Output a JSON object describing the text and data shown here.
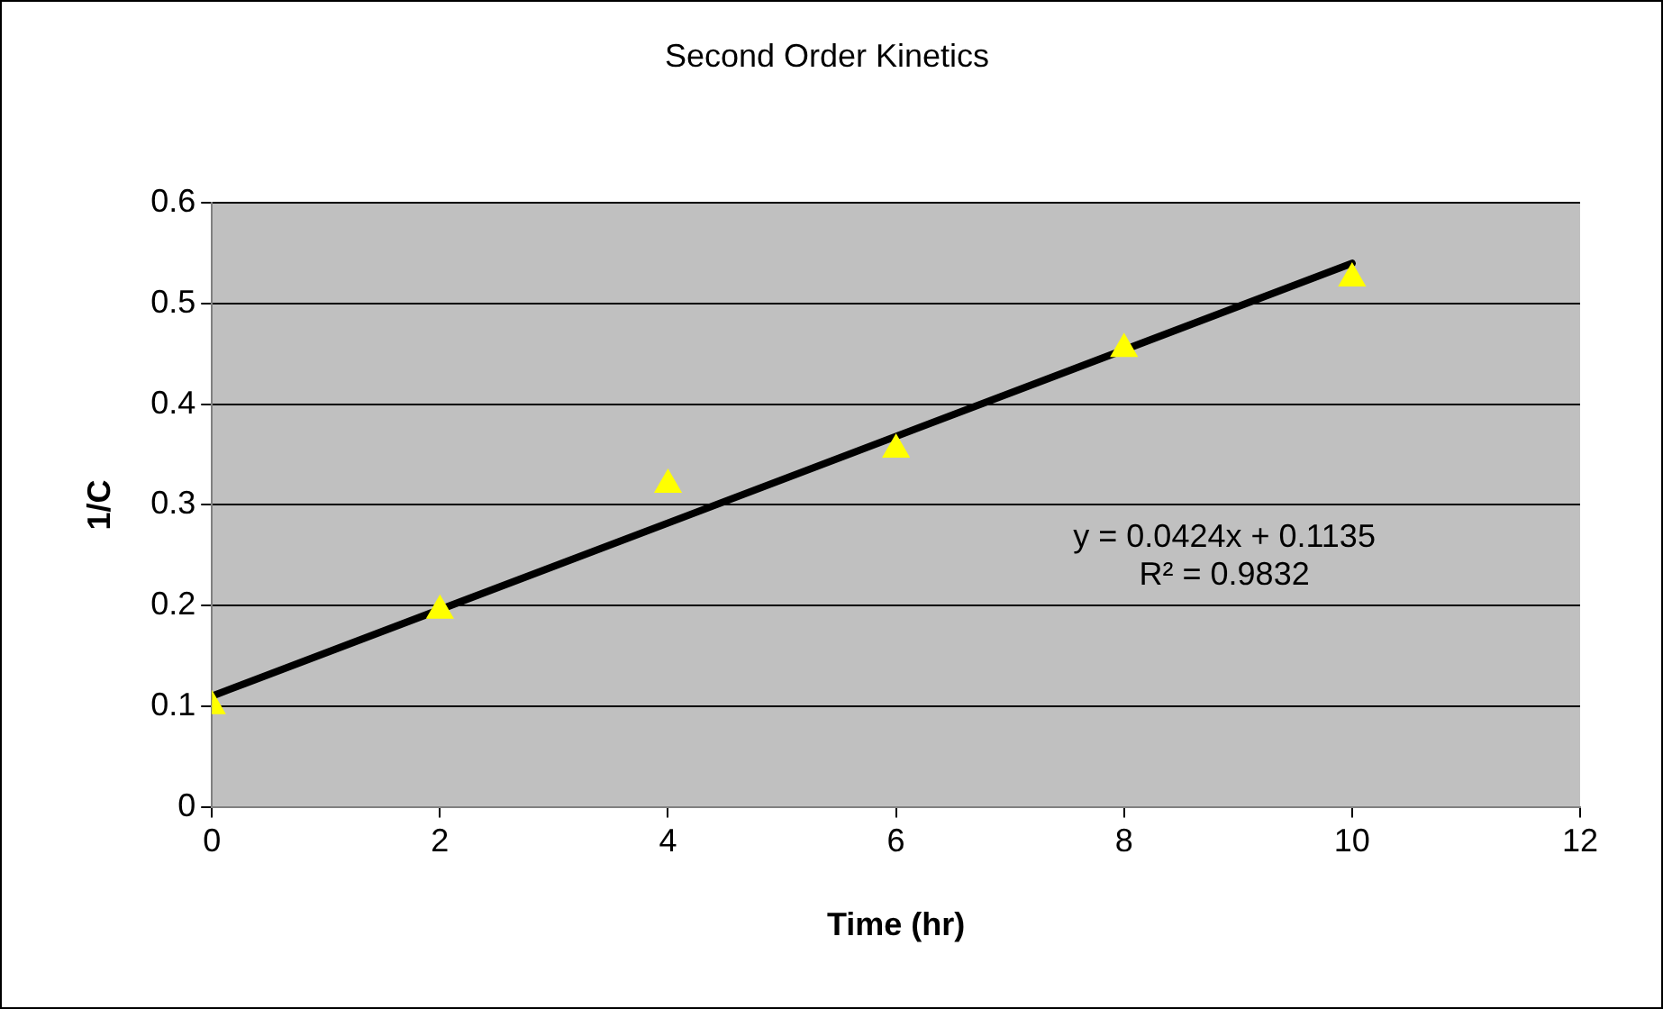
{
  "chart_data": {
    "type": "scatter",
    "title": "Second Order Kinetics",
    "xlabel": "Time (hr)",
    "ylabel": "1/C",
    "x": [
      0,
      2,
      4,
      6,
      8,
      10
    ],
    "series": [
      {
        "type": "scatter",
        "color": "#ffff00",
        "marker": "triangle",
        "values": [
          0.1,
          0.195,
          0.32,
          0.355,
          0.455,
          0.525
        ]
      },
      {
        "type": "line",
        "color": "#000000",
        "marker": "none",
        "x": [
          0,
          10
        ],
        "values": [
          0.11,
          0.54
        ]
      }
    ],
    "annotations": [
      "y = 0.0424x + 0.1135",
      "R² = 0.9832"
    ],
    "xlim": [
      0,
      12
    ],
    "xticks": [
      0,
      2,
      4,
      6,
      8,
      10,
      12
    ],
    "ylim": [
      0,
      0.6
    ],
    "yticks": [
      0,
      0.1,
      0.2,
      0.3,
      0.4,
      0.5,
      0.6
    ],
    "grid": "y",
    "legend": false
  }
}
